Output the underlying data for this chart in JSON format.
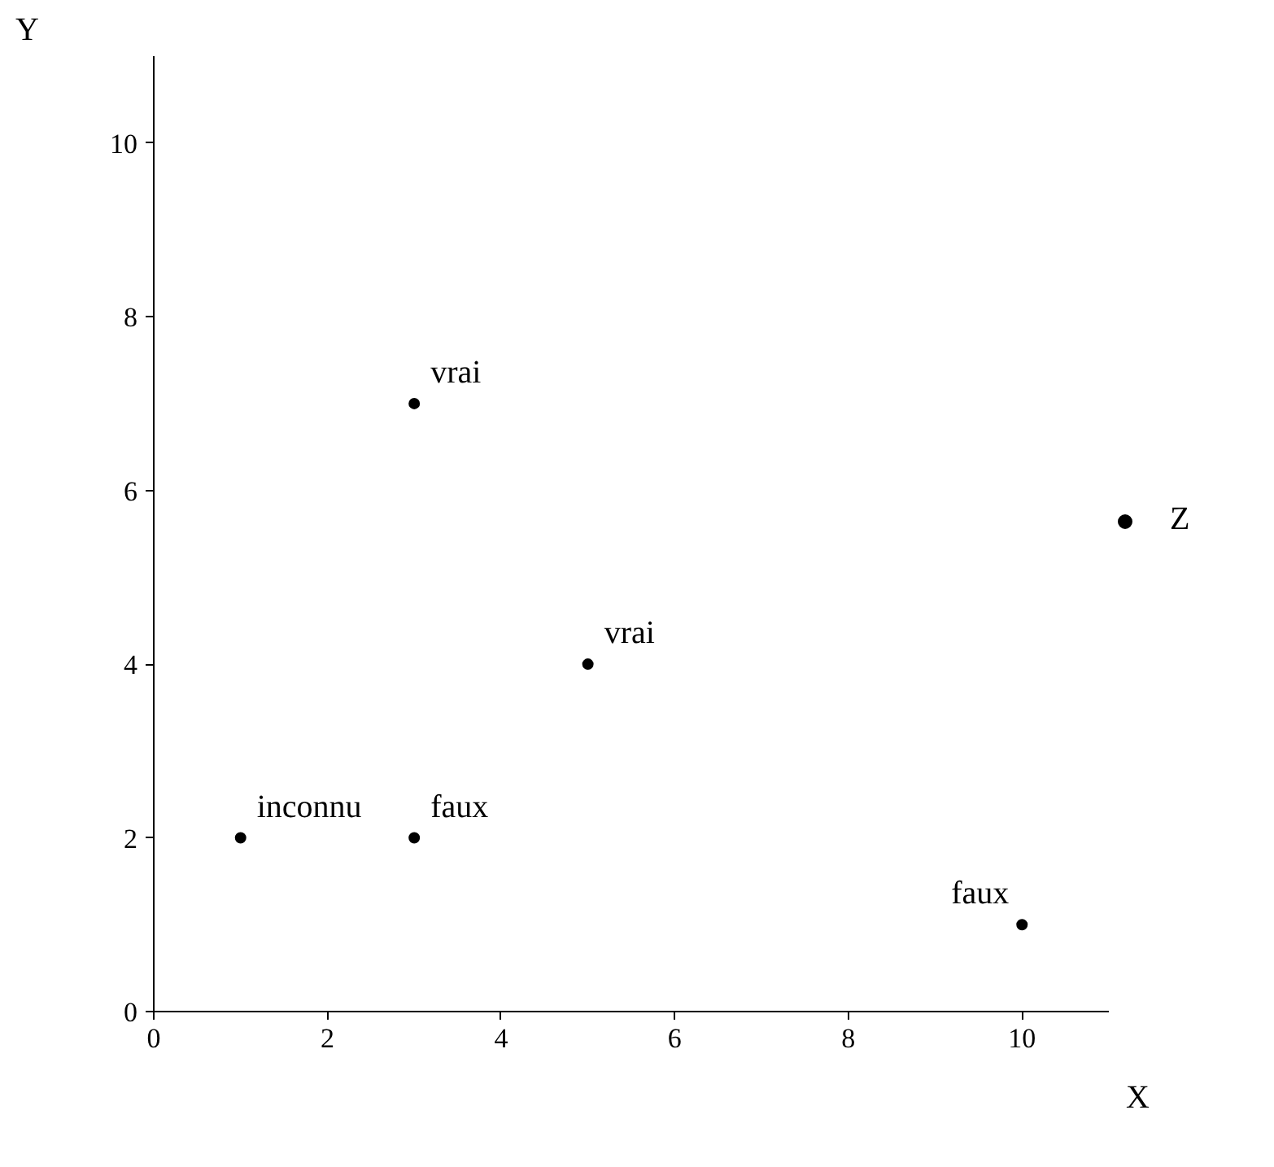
{
  "chart_data": {
    "type": "scatter",
    "xlabel": "X",
    "ylabel": "Y",
    "x": [
      1,
      3,
      3,
      5,
      10
    ],
    "series": [
      {
        "name": "Z",
        "color": "#000000",
        "values": [
          2,
          2,
          7,
          4,
          1
        ]
      }
    ],
    "annotations": [
      {
        "text": "inconnu",
        "x": 1,
        "y": 2
      },
      {
        "text": "faux",
        "x": 3,
        "y": 2
      },
      {
        "text": "vrai",
        "x": 3,
        "y": 7
      },
      {
        "text": "vrai",
        "x": 5,
        "y": 4
      },
      {
        "text": "faux",
        "x": 10,
        "y": 1
      }
    ],
    "xlim": [
      0,
      11
    ],
    "ylim": [
      0,
      11
    ],
    "xticks": [
      0,
      2,
      4,
      6,
      8,
      10
    ],
    "yticks": [
      0,
      2,
      4,
      6,
      8,
      10
    ],
    "grid": false,
    "legend": "right",
    "marker": "circle"
  }
}
